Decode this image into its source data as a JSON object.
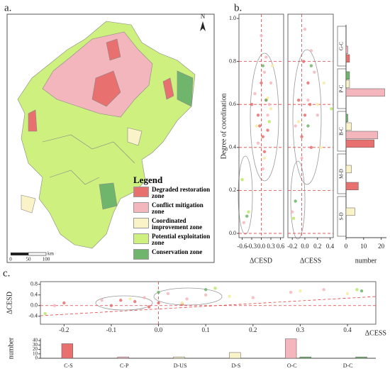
{
  "panels": [
    "a.",
    "b.",
    "c."
  ],
  "map": {
    "north": "N",
    "legend_title": "Legend",
    "legend": [
      {
        "label": "Degraded restoration zone",
        "color": "#e8706e"
      },
      {
        "label": "Conflict mitigation zone",
        "color": "#f4b6bd"
      },
      {
        "label": "Coordinated improvement zone",
        "color": "#fbf3c8"
      },
      {
        "label": "Potential exploitation zone",
        "color": "#cdf07e"
      },
      {
        "label": "Conservation zone",
        "color": "#6fb56b"
      }
    ],
    "scale_ticks": [
      "0",
      "50",
      "100"
    ],
    "scale_unit": "km"
  },
  "chart_data": [
    {
      "type": "scatter",
      "x_label": "ΔCESD",
      "y_label": "Degree of coordination",
      "xlim": [
        -0.7,
        0.7
      ],
      "xticks": [
        -0.6,
        -0.3,
        {
          "value": 0,
          "label": "0.0"
        },
        0.3,
        0.6
      ],
      "ylim": [
        -0.02,
        1.02
      ],
      "yticks": [
        {
          "value": 0,
          "label": "0.0"
        },
        0.2,
        0.4,
        0.6,
        0.8,
        {
          "value": 1,
          "label": "1.0"
        }
      ],
      "ref_x": [
        0
      ],
      "ref_y": [
        0,
        0.2,
        0.4,
        0.6,
        0.8
      ],
      "series": [
        {
          "color": "#e8706e",
          "x": [
            0.05,
            -0.05,
            0.1,
            0.15,
            -0.1,
            0.0,
            0.2,
            -0.3
          ],
          "y": [
            0.45,
            0.5,
            0.38,
            0.62,
            0.55,
            0.7,
            0.48,
            0.6
          ]
        },
        {
          "color": "#f4b6bd",
          "x": [
            0.1,
            -0.2,
            0.2,
            0.3,
            0.0,
            -0.1,
            0.25,
            -0.55,
            0.15,
            0.05
          ],
          "y": [
            0.75,
            0.65,
            0.55,
            0.7,
            0.92,
            0.42,
            0.6,
            0.05,
            0.82,
            0.3
          ]
        },
        {
          "color": "#f5eca0",
          "x": [
            0.2,
            0.35,
            -0.15,
            0.1,
            0.3
          ],
          "y": [
            0.63,
            0.78,
            0.5,
            0.35,
            0.58
          ]
        },
        {
          "color": "#b9e866",
          "x": [
            -0.6,
            0.25,
            -0.4
          ],
          "y": [
            0.25,
            0.52,
            0.1
          ]
        },
        {
          "color": "#6fb56b",
          "x": [
            -0.45,
            0.05,
            0.15
          ],
          "y": [
            0.08,
            0.78,
            0.62
          ]
        }
      ]
    },
    {
      "type": "scatter",
      "x_label": "ΔCESS",
      "xlim": [
        -0.27,
        0.45
      ],
      "xticks": [
        -0.2,
        {
          "value": 0,
          "label": "0.0"
        },
        0.2,
        0.4
      ],
      "ylim": [
        -0.02,
        1.02
      ],
      "ref_x": [
        -0.05
      ],
      "ref_y": [
        0,
        0.2,
        0.4,
        0.6,
        0.8
      ],
      "series": [
        {
          "color": "#e8706e",
          "x": [
            -0.05,
            0.0,
            -0.1,
            0.05,
            0.1,
            -0.02,
            0.08
          ],
          "y": [
            0.45,
            0.55,
            0.62,
            0.7,
            0.4,
            0.8,
            0.6
          ]
        },
        {
          "color": "#f4b6bd",
          "x": [
            0.05,
            -0.15,
            0.15,
            0.2,
            0.0,
            -0.2,
            0.1,
            -0.05
          ],
          "y": [
            0.62,
            0.5,
            0.75,
            0.55,
            0.95,
            0.1,
            0.85,
            0.35
          ]
        },
        {
          "color": "#f5eca0",
          "x": [
            0.2,
            0.3,
            0.25,
            -0.1
          ],
          "y": [
            0.6,
            0.7,
            0.4,
            0.52
          ]
        },
        {
          "color": "#b9e866",
          "x": [
            -0.18,
            0.42
          ],
          "y": [
            0.07,
            0.58
          ]
        },
        {
          "color": "#6fb56b",
          "x": [
            -0.15,
            0.1,
            0.05
          ],
          "y": [
            0.15,
            0.78,
            0.5
          ]
        }
      ]
    },
    {
      "type": "hbar",
      "x_label": "number",
      "categories": [
        "G-C",
        "P-C",
        "B-C",
        "M-D",
        "S-D"
      ],
      "xlim": [
        0,
        23
      ],
      "xticks": [
        0,
        10,
        20
      ],
      "series": [
        {
          "color": "#6fb56b",
          "values": [
            0,
            2,
            1,
            0,
            0
          ]
        },
        {
          "color": "#fbf3c8",
          "values": [
            0,
            2,
            3,
            3,
            5
          ]
        },
        {
          "color": "#f4b6bd",
          "values": [
            1,
            22,
            18,
            0,
            0
          ]
        },
        {
          "color": "#e8706e",
          "values": [
            2,
            0,
            16,
            7,
            0
          ]
        }
      ]
    },
    {
      "type": "scatter",
      "x_label": "ΔCESS",
      "y_label": "ΔCESD",
      "xlim": [
        -0.25,
        0.46
      ],
      "xticks": [
        -0.2,
        -0.1,
        {
          "value": 0,
          "label": "0.0"
        },
        0.1,
        0.2,
        0.3,
        0.4
      ],
      "ylim": [
        -0.7,
        0.9
      ],
      "yticks": [
        -0.4,
        {
          "value": 0,
          "label": "0.0"
        },
        0.4,
        0.8
      ],
      "ref_x": [
        0
      ],
      "ref_y": [
        0
      ],
      "series": [
        {
          "color": "#e8706e",
          "x": [
            -0.2,
            -0.1,
            -0.05,
            -0.02,
            -0.08,
            0.0,
            0.05
          ],
          "y": [
            0.1,
            0.0,
            0.15,
            -0.05,
            0.2,
            0.1,
            0.05
          ]
        },
        {
          "color": "#f4b6bd",
          "x": [
            -0.22,
            -0.12,
            -0.03,
            0.02,
            0.1,
            0.2,
            0.28,
            0.35,
            0.06
          ],
          "y": [
            0.0,
            0.2,
            0.3,
            0.45,
            0.4,
            0.3,
            0.5,
            0.6,
            0.25
          ]
        },
        {
          "color": "#f5eca0",
          "x": [
            0.15,
            0.3,
            0.4,
            0.05,
            -0.06
          ],
          "y": [
            0.35,
            0.55,
            0.45,
            0.1,
            0.25
          ]
        },
        {
          "color": "#b9e866",
          "x": [
            0.42,
            -0.24,
            0.12
          ],
          "y": [
            0.6,
            -0.3,
            0.65
          ]
        },
        {
          "color": "#6fb56b",
          "x": [
            0.0,
            0.1,
            0.43
          ],
          "y": [
            0.5,
            0.6,
            0.55
          ]
        }
      ]
    },
    {
      "type": "bar",
      "y_label": "number",
      "categories": [
        "C-S",
        "C-P",
        "D-US",
        "D-S",
        "O-C",
        "D-C"
      ],
      "ylim": [
        0,
        45
      ],
      "yticks": [
        0,
        10,
        20,
        30,
        40
      ],
      "series": [
        {
          "colors": [
            "#e8706e",
            "#f4b6bd",
            "#fbf3c8",
            "#fbf3c8",
            "#f4b6bd",
            null
          ],
          "values": [
            33,
            3,
            3,
            13,
            44,
            null
          ]
        },
        {
          "color": "#6fb56b",
          "values": [
            null,
            null,
            null,
            null,
            3,
            3
          ]
        }
      ]
    }
  ]
}
